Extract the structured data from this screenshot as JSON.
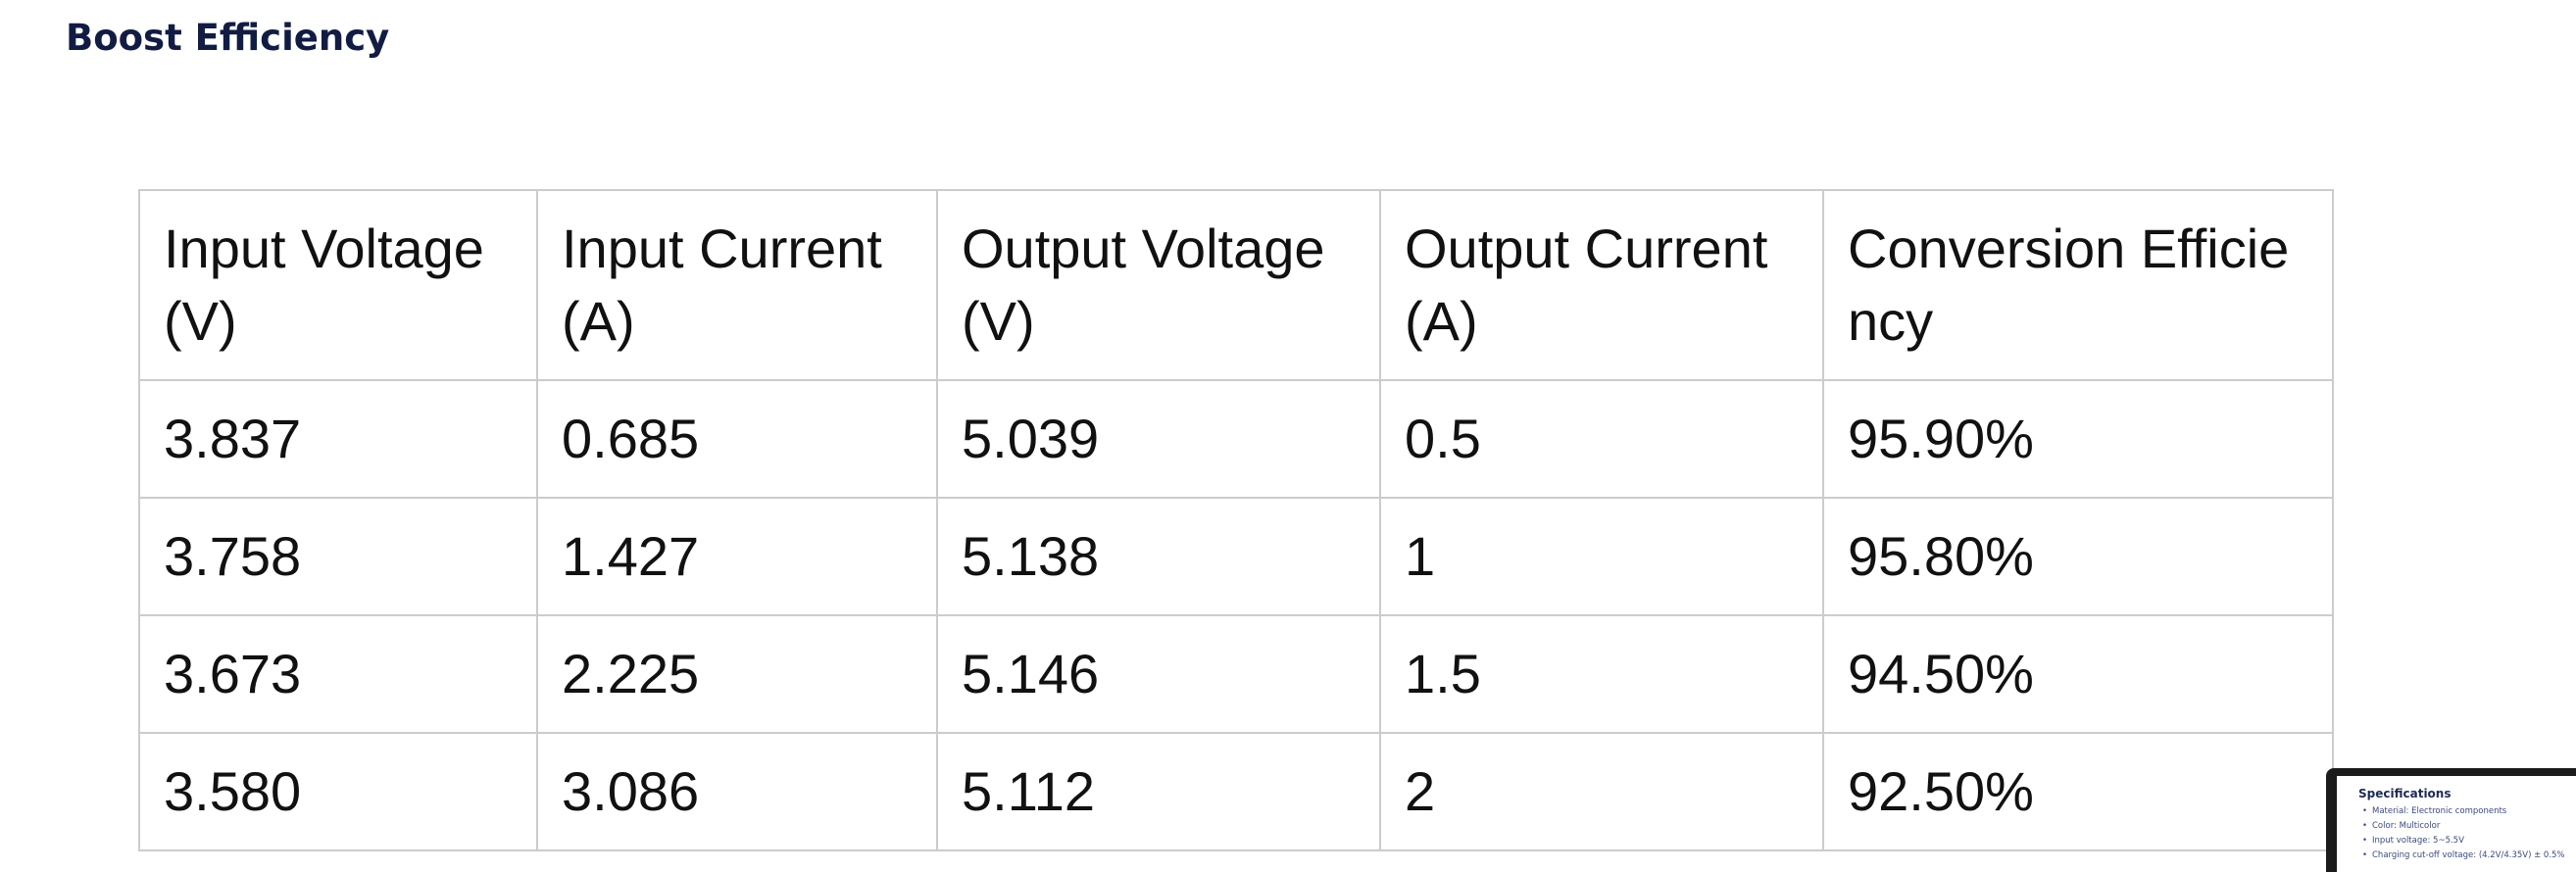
{
  "heading": "Boost Efficiency",
  "table": {
    "headers": [
      "Input Voltage (V)",
      "Input Current (A)",
      "Output Voltage (V)",
      "Output Current (A)",
      "Conversion Efficiency"
    ],
    "rows": [
      [
        "3.837",
        "0.685",
        "5.039",
        "0.5",
        "95.90%"
      ],
      [
        "3.758",
        "1.427",
        "5.138",
        "1",
        "95.80%"
      ],
      [
        "3.673",
        "2.225",
        "5.146",
        "1.5",
        "94.50%"
      ],
      [
        "3.580",
        "3.086",
        "5.112",
        "2",
        "92.50%"
      ]
    ]
  },
  "thumbnail": {
    "title": "Specifications",
    "items": [
      "Material: Electronic components",
      "Color: Multicolor",
      "Input voltage: 5~5.5V",
      "Charging cut-off voltage: (4.2V/4.35V) ± 0.5%"
    ]
  },
  "colors": {
    "heading": "#121c43",
    "table_border": "#cccccc",
    "table_text": "#111111"
  }
}
